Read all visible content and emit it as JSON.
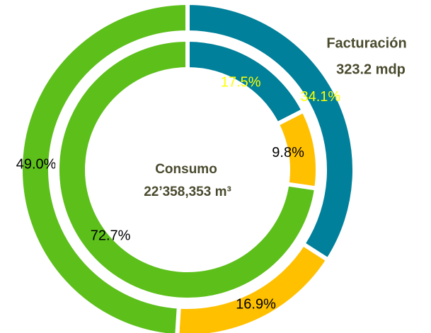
{
  "chart_data": {
    "type": "donut",
    "colors": [
      "#00809a",
      "#ffc000",
      "#5cbf1a"
    ],
    "series": [
      {
        "name": "Facturación",
        "total": "323.2 mdp",
        "values": [
          34.1,
          16.9,
          49.0
        ],
        "value_labels": [
          "34.1%",
          "16.9%",
          "49.0%"
        ],
        "label_colors": [
          "#ffff00",
          "#000000",
          "#000000"
        ]
      },
      {
        "name": "Consumo",
        "total": "22’358,353 m³",
        "values": [
          17.5,
          9.8,
          72.7
        ],
        "value_labels": [
          "17.5%",
          "9.8%",
          "72.7%"
        ],
        "label_colors": [
          "#ffff00",
          "#000000",
          "#000000"
        ]
      }
    ]
  }
}
